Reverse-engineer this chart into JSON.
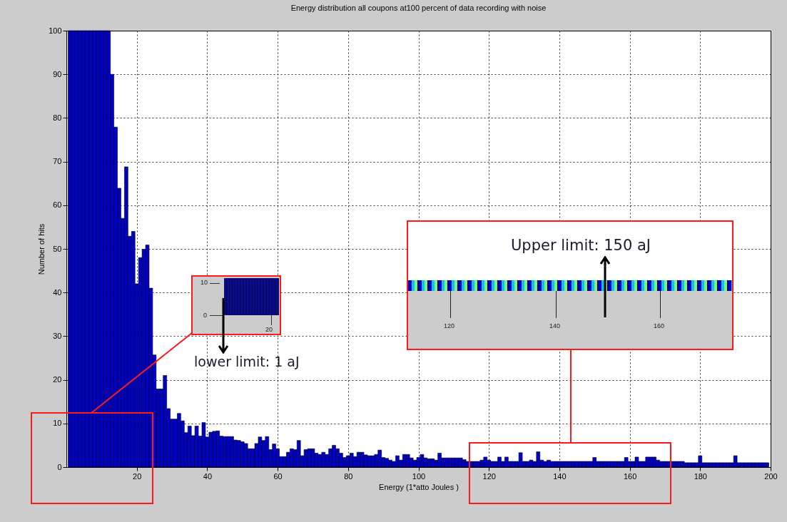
{
  "chart_data": {
    "type": "histogram",
    "title": "Energy distribution all coupons at100 percent of data recording with noise",
    "xlabel": "Energy (1*atto Joules )",
    "ylabel": "Number of hits",
    "color": "#0000c8",
    "bins": [
      0.5,
      1.5,
      2.5,
      3.5,
      4.5,
      5.5,
      6.5,
      7.5,
      8.5,
      9.5,
      10.5,
      11.5,
      12.5,
      13.5,
      14.5,
      15.5,
      16.5,
      17.5,
      18.5,
      19.5,
      20.5,
      21.5,
      22.5,
      23.5,
      24.5,
      25.5,
      26.5,
      27.5,
      28.5,
      29.5,
      30.5,
      31.5,
      32.5,
      33.5,
      34.5,
      35.5,
      36.5,
      37.5,
      38.5,
      39.5,
      40.5,
      41.5,
      42.5,
      43.5,
      44.5,
      45.5,
      46.5,
      47.5,
      48.5,
      49.5,
      50.5,
      51.5,
      52.5,
      53.5,
      54.5,
      55.5,
      56.5,
      57.5,
      58.5,
      59.5,
      60.5,
      61.5,
      62.5,
      63.5,
      64.5,
      65.5,
      66.5,
      67.5,
      68.5,
      69.5,
      70.5,
      71.5,
      72.5,
      73.5,
      74.5,
      75.5,
      76.5,
      77.5,
      78.5,
      79.5,
      80.5,
      81.5,
      82.5,
      83.5,
      84.5,
      85.5,
      86.5,
      87.5,
      88.5,
      89.5,
      90.5,
      91.5,
      92.5,
      93.5,
      94.5,
      95.5,
      96.5,
      97.5,
      98.5,
      99.5,
      100.5,
      101.5,
      102.5,
      103.5,
      104.5,
      105.5,
      106.5,
      107.5,
      108.5,
      109.5,
      110.5,
      111.5,
      112.5,
      113.5,
      114.5,
      115.5,
      116.5,
      117.5,
      118.5,
      119.5,
      120.5,
      121.5,
      122.5,
      123.5,
      124.5,
      125.5,
      126.5,
      127.5,
      128.5,
      129.5,
      130.5,
      131.5,
      132.5,
      133.5,
      134.5,
      135.5,
      136.5,
      137.5,
      138.5,
      139.5,
      140.5,
      141.5,
      142.5,
      143.5,
      144.5,
      145.5,
      146.5,
      147.5,
      148.5,
      149.5,
      150.5,
      151.5,
      152.5,
      153.5,
      154.5,
      155.5,
      156.5,
      157.5,
      158.5,
      159.5,
      160.5,
      161.5,
      162.5,
      163.5,
      164.5,
      165.5,
      166.5,
      167.5,
      168.5,
      169.5,
      170.5,
      171.5,
      172.5,
      173.5,
      174.5,
      175.5,
      176.5,
      177.5,
      178.5,
      179.5,
      180.5,
      181.5,
      182.5,
      183.5,
      184.5,
      185.5,
      186.5,
      187.5,
      188.5,
      189.5,
      190.5,
      191.5,
      192.5,
      193.5,
      194.5,
      195.5,
      196.5,
      197.5,
      198.5,
      199.5
    ],
    "values": [
      100,
      100,
      100,
      100,
      100,
      100,
      100,
      100,
      100,
      100,
      100,
      100,
      90,
      77.9,
      63.9,
      57,
      68.8,
      52.9,
      54,
      42,
      48,
      49.9,
      50.9,
      41,
      25.7,
      17.9,
      17.9,
      21,
      13.4,
      11,
      11,
      12.3,
      10.6,
      7.9,
      9.4,
      7.2,
      9.4,
      7.1,
      10.2,
      6.9,
      8,
      8.2,
      8.3,
      7.1,
      7,
      7,
      7,
      6.2,
      6.1,
      5.8,
      5.4,
      4.2,
      4.2,
      5.4,
      6.9,
      6.1,
      7,
      4,
      5.3,
      4.2,
      2.4,
      2.4,
      3.4,
      4.2,
      4,
      6.1,
      2.6,
      4,
      4.2,
      4.2,
      3.2,
      2.9,
      3.4,
      2.9,
      4.2,
      5,
      4.2,
      3.2,
      2.2,
      2.6,
      3.2,
      2.4,
      3.4,
      3.4,
      2.8,
      2.6,
      2.6,
      2.9,
      3.9,
      2.2,
      2,
      1.6,
      1.3,
      2.6,
      1.6,
      2.9,
      2.9,
      2.1,
      1.6,
      2.2,
      2.9,
      2.1,
      1.9,
      1.9,
      1.6,
      3.2,
      2.1,
      2.1,
      2.1,
      2.1,
      2.1,
      2.1,
      1.7,
      1.3,
      1.3,
      1.3,
      1.3,
      1.6,
      2.3,
      1.6,
      1.3,
      1.3,
      2.3,
      1.3,
      2.3,
      1.3,
      1.3,
      1.3,
      3.3,
      1.3,
      1.3,
      1.6,
      1.3,
      3.5,
      1.6,
      1.3,
      1.6,
      1.3,
      1.3,
      1.3,
      1.3,
      1.3,
      1.3,
      1.3,
      1.3,
      1.3,
      1.3,
      1.3,
      1.3,
      2.2,
      1.3,
      1.3,
      1.3,
      1.3,
      1.3,
      1.3,
      1.3,
      1.3,
      2.2,
      1.3,
      1.3,
      2.3,
      1.3,
      1.3,
      2.3,
      2.3,
      2.3,
      1.6,
      1.3,
      1.3,
      1.3,
      1.3,
      1.3,
      1.3,
      1.3,
      1,
      1,
      1,
      1,
      2.6,
      1,
      1,
      1,
      1,
      1,
      1,
      1,
      1,
      1,
      2.6,
      1,
      1,
      1,
      1,
      1,
      1,
      1,
      1,
      1
    ],
    "xlim": [
      0,
      200
    ],
    "xticks": [
      20,
      40,
      60,
      80,
      100,
      120,
      140,
      160,
      180,
      200
    ],
    "ylim": [
      0,
      100
    ],
    "yticks": [
      0,
      10,
      20,
      30,
      40,
      50,
      60,
      70,
      80,
      90,
      100
    ],
    "grid": true,
    "annotations": [
      "lower limit: 1 aJ",
      "Upper limit: 150 aJ",
      "10",
      "0",
      "20",
      "120",
      "140",
      "160"
    ]
  }
}
